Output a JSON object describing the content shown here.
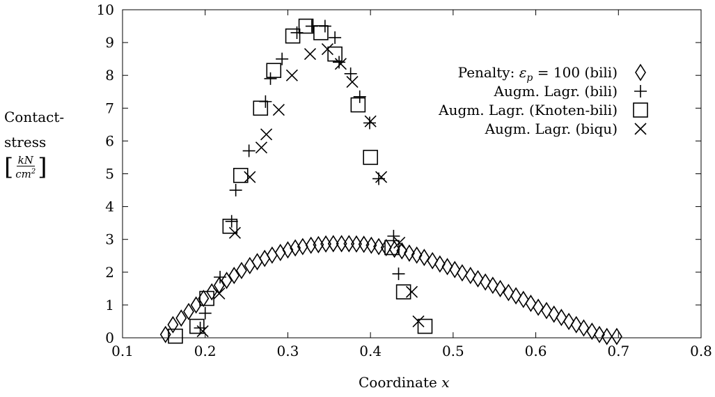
{
  "chart_data": {
    "type": "scatter",
    "xlabel": "Coordinate",
    "xlabel_var": "x",
    "ylabel": {
      "line1": "Contact-",
      "line2": "stress",
      "unit_numerator": "kN",
      "unit_denominator_base": "cm",
      "unit_denominator_exp": "2"
    },
    "xlim": [
      0.1,
      0.8
    ],
    "ylim": [
      0,
      10
    ],
    "x_ticks": [
      0.1,
      0.2,
      0.3,
      0.4,
      0.5,
      0.6,
      0.7,
      0.8
    ],
    "x_tick_labels": [
      "0.1",
      "0.2",
      "0.3",
      "0.4",
      "0.5",
      "0.6",
      "0.7",
      "0.8"
    ],
    "y_ticks": [
      0,
      1,
      2,
      3,
      4,
      5,
      6,
      7,
      8,
      9,
      10
    ],
    "y_tick_labels": [
      "0",
      "1",
      "2",
      "3",
      "4",
      "5",
      "6",
      "7",
      "8",
      "9",
      "10"
    ],
    "grid": false,
    "legend_position": "top-right",
    "series": [
      {
        "name": "Penalty: εp = 100 (bili)",
        "legend_prefix": "Penalty: ",
        "legend_symbol": "ε",
        "legend_subscript": "p",
        "legend_rest": " = 100 (bili)",
        "marker": "diamond",
        "x": [
          0.152,
          0.161,
          0.171,
          0.18,
          0.189,
          0.198,
          0.208,
          0.217,
          0.226,
          0.235,
          0.244,
          0.254,
          0.263,
          0.272,
          0.281,
          0.291,
          0.3,
          0.309,
          0.318,
          0.328,
          0.337,
          0.346,
          0.355,
          0.365,
          0.374,
          0.383,
          0.392,
          0.401,
          0.41,
          0.419,
          0.429,
          0.438,
          0.447,
          0.456,
          0.465,
          0.475,
          0.484,
          0.493,
          0.502,
          0.511,
          0.521,
          0.53,
          0.539,
          0.548,
          0.557,
          0.567,
          0.576,
          0.585,
          0.594,
          0.603,
          0.613,
          0.622,
          0.631,
          0.64,
          0.649,
          0.658,
          0.668,
          0.677,
          0.686,
          0.698
        ],
        "y": [
          0.1,
          0.4,
          0.6,
          0.8,
          1.0,
          1.2,
          1.4,
          1.6,
          1.75,
          1.9,
          2.05,
          2.2,
          2.32,
          2.42,
          2.52,
          2.6,
          2.68,
          2.74,
          2.78,
          2.82,
          2.84,
          2.86,
          2.87,
          2.87,
          2.87,
          2.86,
          2.85,
          2.82,
          2.78,
          2.75,
          2.7,
          2.65,
          2.58,
          2.52,
          2.45,
          2.35,
          2.25,
          2.17,
          2.08,
          1.98,
          1.9,
          1.8,
          1.7,
          1.6,
          1.5,
          1.38,
          1.28,
          1.17,
          1.05,
          0.93,
          0.83,
          0.72,
          0.62,
          0.5,
          0.4,
          0.3,
          0.2,
          0.1,
          0.04,
          0.04
        ]
      },
      {
        "name": "Augm. Lagr. (bili)",
        "marker": "plus",
        "x": [
          0.194,
          0.2,
          0.218,
          0.232,
          0.237,
          0.253,
          0.273,
          0.279,
          0.293,
          0.311,
          0.329,
          0.345,
          0.357,
          0.362,
          0.376,
          0.387,
          0.399,
          0.41,
          0.428,
          0.434
        ],
        "y": [
          0.3,
          0.75,
          1.85,
          3.55,
          4.5,
          5.7,
          7.2,
          7.9,
          8.5,
          9.3,
          9.5,
          9.5,
          9.15,
          8.4,
          8.05,
          7.35,
          6.55,
          4.85,
          3.1,
          1.95
        ]
      },
      {
        "name": "Augm. Lagr. (Knoten-bili)",
        "marker": "square",
        "x": [
          0.164,
          0.19,
          0.202,
          0.23,
          0.243,
          0.267,
          0.283,
          0.306,
          0.322,
          0.34,
          0.357,
          0.385,
          0.4,
          0.426,
          0.44,
          0.466
        ],
        "y": [
          0.05,
          0.35,
          1.2,
          3.4,
          4.95,
          7.0,
          8.15,
          9.2,
          9.5,
          9.3,
          8.65,
          7.1,
          5.5,
          2.75,
          1.4,
          0.35
        ]
      },
      {
        "name": "Augm. Lagr. (biqu)",
        "marker": "cross",
        "x": [
          0.197,
          0.217,
          0.236,
          0.254,
          0.268,
          0.274,
          0.289,
          0.305,
          0.327,
          0.348,
          0.364,
          0.378,
          0.4,
          0.413,
          0.435,
          0.45,
          0.458
        ],
        "y": [
          0.2,
          1.35,
          3.2,
          4.9,
          5.8,
          6.2,
          6.95,
          8.0,
          8.65,
          8.8,
          8.35,
          7.8,
          6.6,
          4.9,
          2.9,
          1.4,
          0.5
        ]
      }
    ]
  }
}
